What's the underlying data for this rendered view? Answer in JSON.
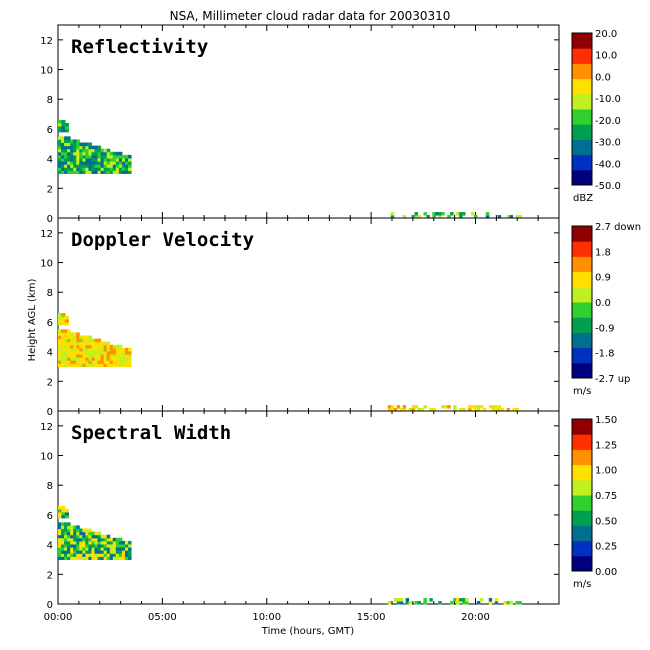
{
  "title": "NSA, Millimeter cloud radar data for 20030310",
  "xlabel": "Time (hours, GMT)",
  "ylabel": "Height AGL (km)",
  "x_ticks": [
    "00:00",
    "05:00",
    "10:00",
    "15:00",
    "20:00"
  ],
  "y_ticks": [
    "0",
    "2",
    "4",
    "6",
    "8",
    "10",
    "12"
  ],
  "panels": [
    {
      "title": "Reflectivity",
      "colorbar": {
        "ticks": [
          "20.0",
          "10.0",
          "0.0",
          "-10.0",
          "-20.0",
          "-30.0",
          "-40.0",
          "-50.0"
        ],
        "unit": "dBZ"
      }
    },
    {
      "title": "Doppler Velocity",
      "colorbar": {
        "ticks": [
          "2.7 down",
          "1.8",
          "0.9",
          "0.0",
          "-0.9",
          "-1.8",
          "-2.7 up"
        ],
        "unit": "m/s"
      }
    },
    {
      "title": "Spectral Width",
      "colorbar": {
        "ticks": [
          "1.50",
          "1.25",
          "1.00",
          "0.75",
          "0.50",
          "0.25",
          "0.00"
        ],
        "unit": "m/s"
      }
    }
  ],
  "chart_data": {
    "type": "heatmap",
    "x_range_hours": [
      0,
      24
    ],
    "y_range_km": [
      0,
      13
    ],
    "grid": false,
    "colormap": [
      "#00007f",
      "#0030c0",
      "#007090",
      "#00a050",
      "#30d030",
      "#c0f020",
      "#ffe000",
      "#ff9000",
      "#ff3000",
      "#900000"
    ],
    "features": [
      {
        "name": "low cloud",
        "time_start_h": 0.0,
        "time_end_h": 3.5,
        "height_base_km": 3.0,
        "height_top_km": 5.5
      },
      {
        "name": "upper cloud fragment",
        "time_start_h": 0.0,
        "time_end_h": 0.5,
        "height_base_km": 5.8,
        "height_top_km": 6.6
      },
      {
        "name": "near-surface echoes",
        "time_start_h": 15.8,
        "time_end_h": 22.2,
        "height_base_km": 0.0,
        "height_top_km": 0.4
      }
    ]
  }
}
